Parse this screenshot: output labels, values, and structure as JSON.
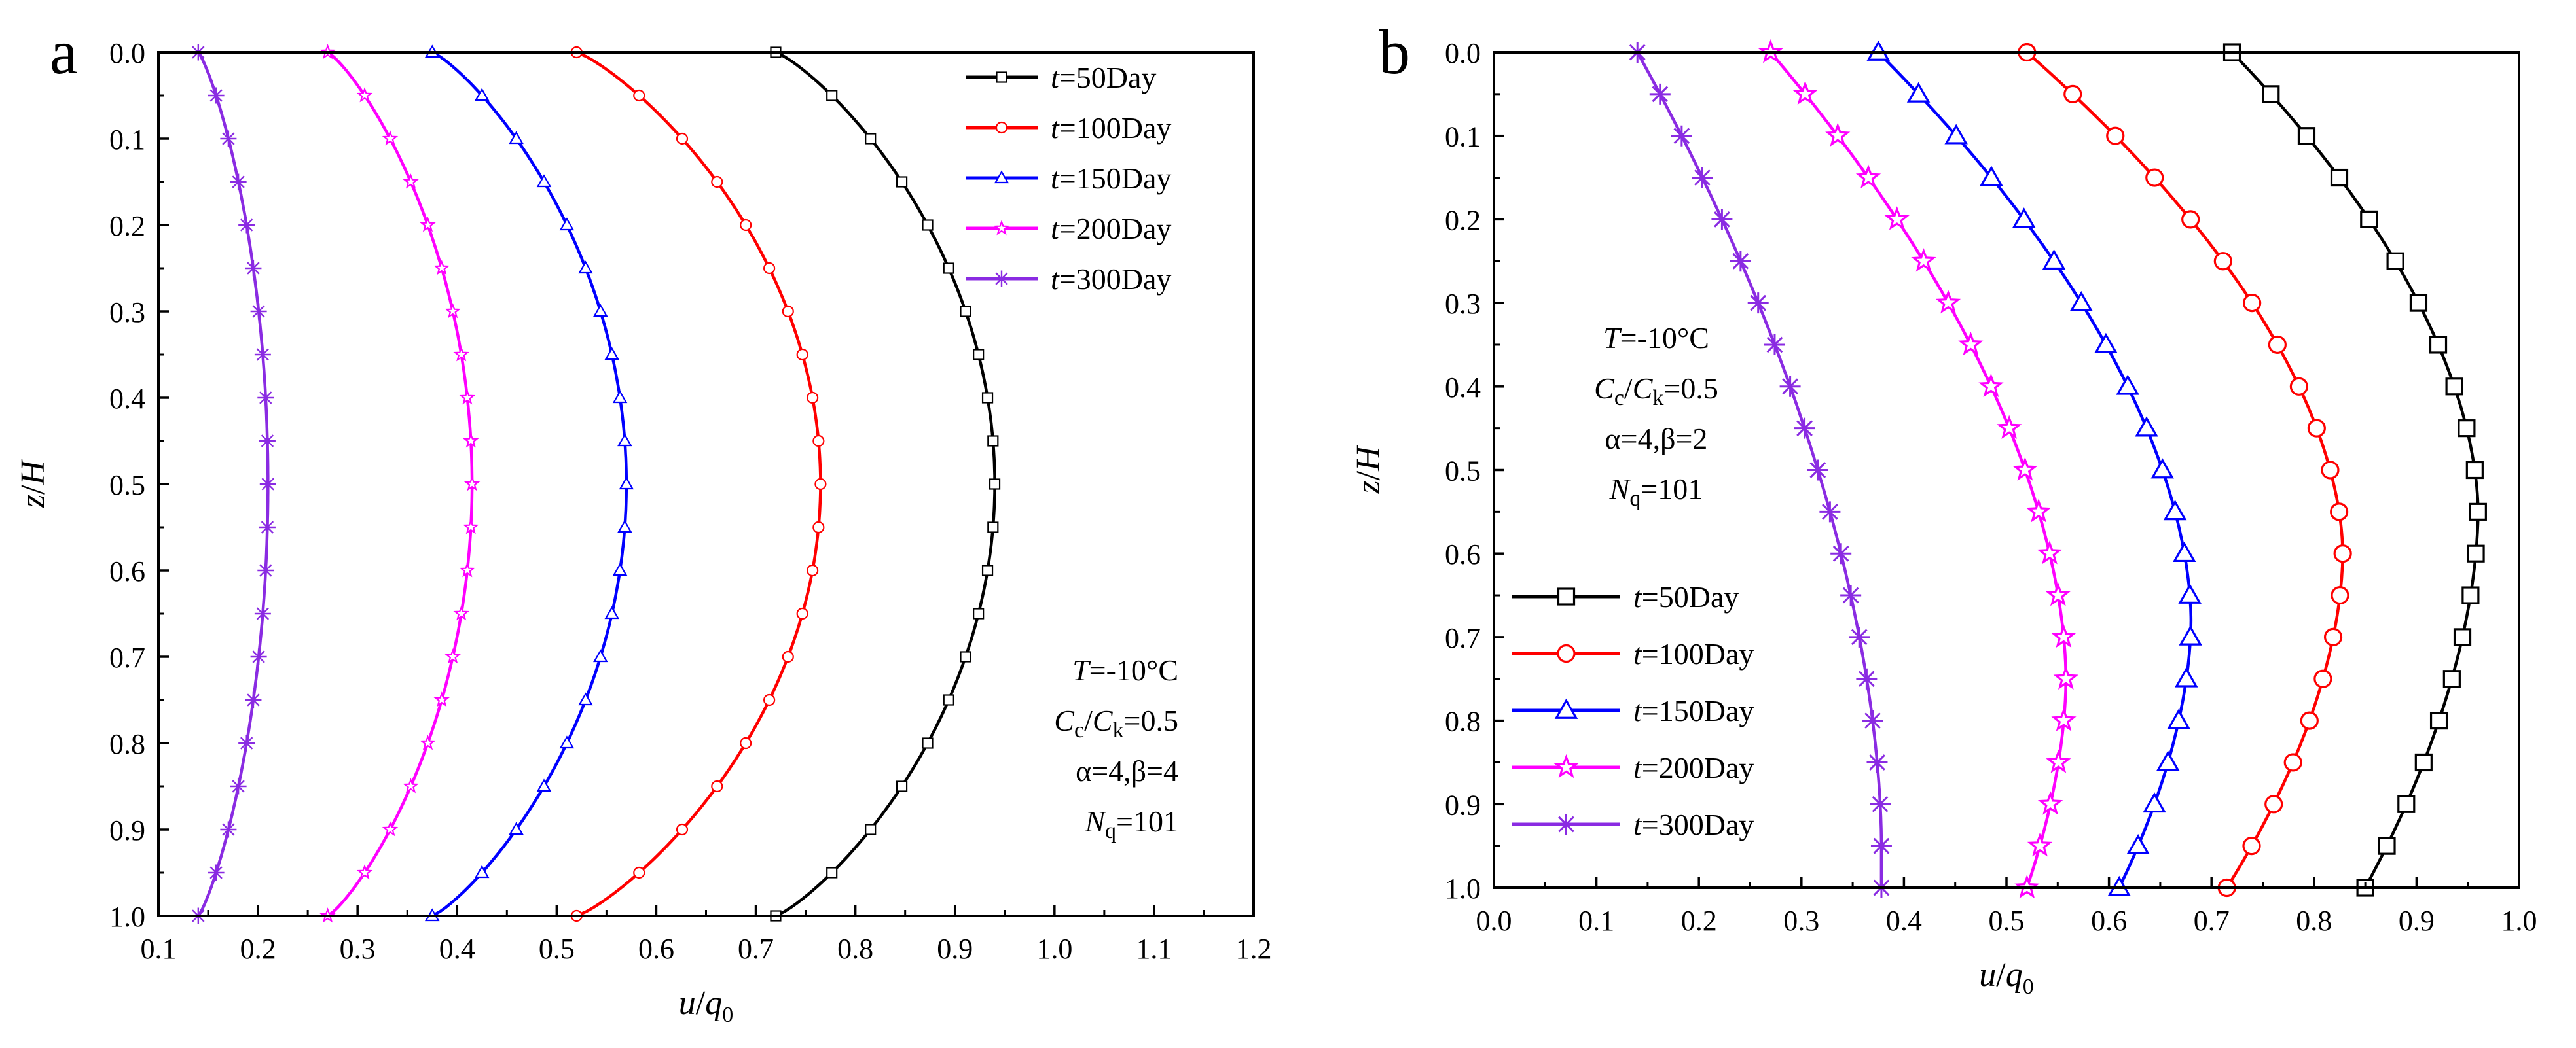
{
  "chart_data": [
    {
      "type": "line",
      "panel_label": "a",
      "xlabel": "u/q0",
      "ylabel": "z/H",
      "xlim": [
        0.1,
        1.2
      ],
      "ylim": [
        0.0,
        1.0
      ],
      "y_inverted": true,
      "x_ticks": [
        "0.1",
        "0.2",
        "0.3",
        "0.4",
        "0.5",
        "0.6",
        "0.7",
        "0.8",
        "0.9",
        "1.0",
        "1.1",
        "1.2"
      ],
      "y_ticks": [
        "0.0",
        "0.1",
        "0.2",
        "0.3",
        "0.4",
        "0.5",
        "0.6",
        "0.7",
        "0.8",
        "0.9",
        "1.0"
      ],
      "grid": false,
      "legend_position": "top-right",
      "z": [
        0,
        0.05,
        0.1,
        0.15,
        0.2,
        0.25,
        0.3,
        0.35,
        0.4,
        0.45,
        0.5,
        0.55,
        0.6,
        0.65,
        0.7,
        0.75,
        0.8,
        0.85,
        0.9,
        0.95,
        1.0
      ],
      "series": [
        {
          "name": "t=50Day",
          "t_label": "t",
          "rest_label": "=50Day",
          "color": "#000000",
          "marker": "square",
          "edge": 0.72,
          "peak": 0.94
        },
        {
          "name": "t=100Day",
          "t_label": "t",
          "rest_label": "=100Day",
          "color": "#ff0000",
          "marker": "circle",
          "edge": 0.52,
          "peak": 0.765
        },
        {
          "name": "t=150Day",
          "t_label": "t",
          "rest_label": "=150Day",
          "color": "#0000ff",
          "marker": "triangle",
          "edge": 0.375,
          "peak": 0.57
        },
        {
          "name": "t=200Day",
          "t_label": "t",
          "rest_label": "=200Day",
          "color": "#ff00ff",
          "marker": "star",
          "edge": 0.27,
          "peak": 0.415
        },
        {
          "name": "t=300Day",
          "t_label": "t",
          "rest_label": "=300Day",
          "color": "#8a2be2",
          "marker": "asterisk",
          "edge": 0.14,
          "peak": 0.21
        }
      ],
      "annotations": [
        {
          "main": "T",
          "rest": "=-10°C"
        },
        {
          "main": "C",
          "sub": "c",
          "mid": "/",
          "main2": "C",
          "sub2": "k",
          "rest": "=0.5"
        },
        {
          "plain": "α=4,β=4"
        },
        {
          "main": "N",
          "sub": "q",
          "rest": "=101"
        }
      ]
    },
    {
      "type": "line",
      "panel_label": "b",
      "xlabel": "u/q0",
      "ylabel": "z/H",
      "xlim": [
        0.0,
        1.0
      ],
      "ylim": [
        0.0,
        1.0
      ],
      "y_inverted": true,
      "x_ticks": [
        "0.0",
        "0.1",
        "0.2",
        "0.3",
        "0.4",
        "0.5",
        "0.6",
        "0.7",
        "0.8",
        "0.9",
        "1.0"
      ],
      "y_ticks": [
        "0.0",
        "0.1",
        "0.2",
        "0.3",
        "0.4",
        "0.5",
        "0.6",
        "0.7",
        "0.8",
        "0.9",
        "1.0"
      ],
      "grid": false,
      "legend_position": "bottom-left",
      "z": [
        0,
        0.05,
        0.1,
        0.15,
        0.2,
        0.25,
        0.3,
        0.35,
        0.4,
        0.45,
        0.5,
        0.55,
        0.6,
        0.65,
        0.7,
        0.75,
        0.8,
        0.85,
        0.9,
        0.95,
        1.0
      ],
      "series": [
        {
          "name": "t=50Day",
          "t_label": "t",
          "rest_label": "=50Day",
          "color": "#000000",
          "marker": "square",
          "top": 0.72,
          "bottom": 0.85,
          "peak": 0.96,
          "zpeak": 0.55
        },
        {
          "name": "t=100Day",
          "t_label": "t",
          "rest_label": "=100Day",
          "color": "#ff0000",
          "marker": "circle",
          "top": 0.52,
          "bottom": 0.715,
          "peak": 0.828,
          "zpeak": 0.6
        },
        {
          "name": "t=150Day",
          "t_label": "t",
          "rest_label": "=150Day",
          "color": "#0000ff",
          "marker": "triangle",
          "top": 0.375,
          "bottom": 0.61,
          "peak": 0.68,
          "zpeak": 0.68
        },
        {
          "name": "t=200Day",
          "t_label": "t",
          "rest_label": "=200Day",
          "color": "#ff00ff",
          "marker": "star",
          "top": 0.27,
          "bottom": 0.52,
          "peak": 0.558,
          "zpeak": 0.75
        },
        {
          "name": "t=300Day",
          "t_label": "t",
          "rest_label": "=300Day",
          "color": "#8a2be2",
          "marker": "asterisk",
          "top": 0.14,
          "bottom": 0.378,
          "peak": 0.378,
          "zpeak": 0.95
        }
      ],
      "annotations": [
        {
          "main": "T",
          "rest": "=-10°C"
        },
        {
          "main": "C",
          "sub": "c",
          "mid": "/",
          "main2": "C",
          "sub2": "k",
          "rest": "=0.5"
        },
        {
          "plain": "α=4,β=2"
        },
        {
          "main": "N",
          "sub": "q",
          "rest": "=101"
        }
      ]
    }
  ]
}
